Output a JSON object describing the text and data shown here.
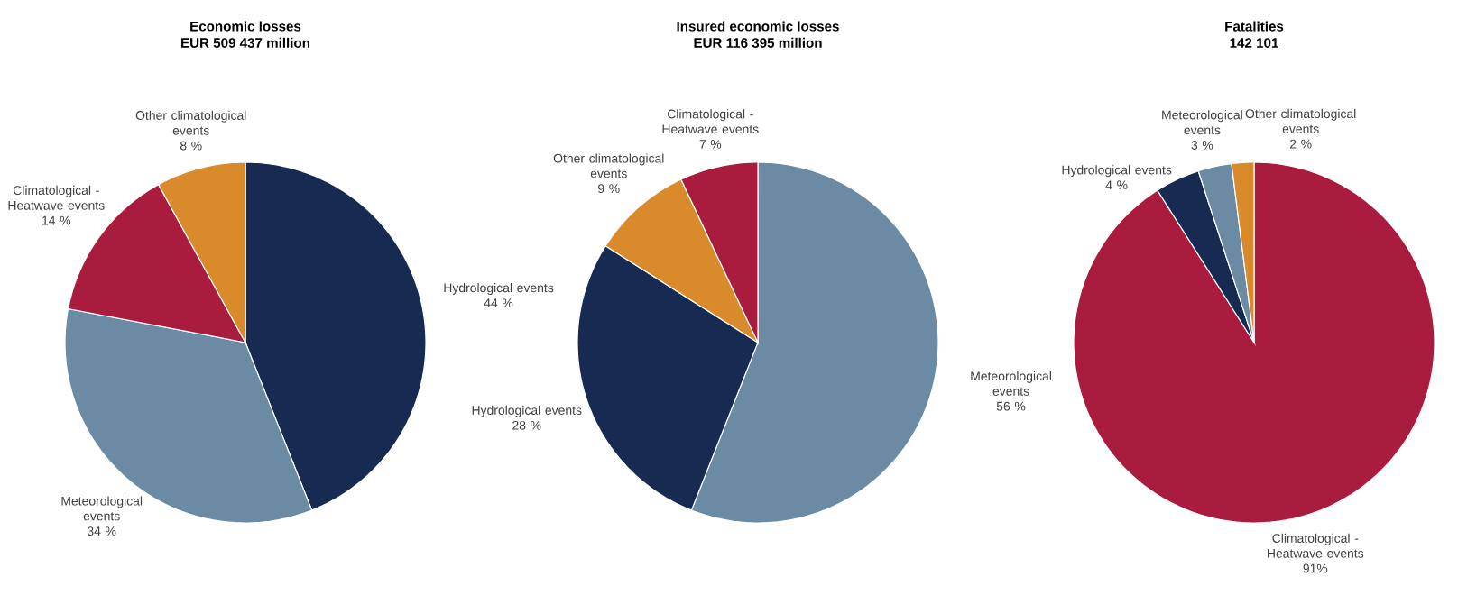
{
  "chart_data": [
    {
      "type": "pie",
      "title": "Economic losses",
      "subtitle": "EUR 509 437 million",
      "categories": [
        "Hydrological events",
        "Meteorological events",
        "Climatological - Heatwave events",
        "Other climatological events"
      ],
      "values": [
        44,
        34,
        14,
        8
      ],
      "value_labels": [
        "44 %",
        "34 %",
        "14 %",
        "8 %"
      ],
      "colors": [
        "#172b52",
        "#6b8ba4",
        "#a91c3e",
        "#d98a2b"
      ]
    },
    {
      "type": "pie",
      "title": "Insured economic losses",
      "subtitle": "EUR 116 395 million",
      "categories": [
        "Meteorological events",
        "Hydrological events",
        "Other climatological events",
        "Climatological - Heatwave events"
      ],
      "values": [
        56,
        28,
        9,
        7
      ],
      "value_labels": [
        "56 %",
        "28 %",
        "9 %",
        "7 %"
      ],
      "colors": [
        "#6b8ba4",
        "#172b52",
        "#d98a2b",
        "#a91c3e"
      ]
    },
    {
      "type": "pie",
      "title": "Fatalities",
      "subtitle": "142 101",
      "categories": [
        "Climatological - Heatwave events",
        "Hydrological events",
        "Meteorological events",
        "Other climatological events"
      ],
      "values": [
        91,
        4,
        3,
        2
      ],
      "value_labels": [
        "91%",
        "4 %",
        "3 %",
        "2 %"
      ],
      "colors": [
        "#a91c3e",
        "#172b52",
        "#6b8ba4",
        "#d98a2b"
      ]
    }
  ]
}
